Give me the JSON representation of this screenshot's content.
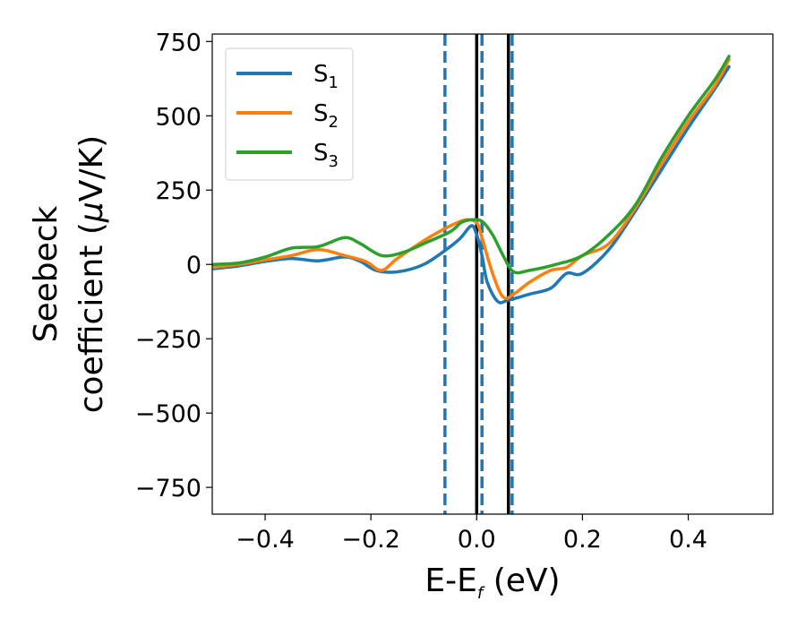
{
  "chart_data": {
    "type": "line",
    "xlabel": {
      "main": "E-E",
      "sub": "f",
      "unit": " (eV)"
    },
    "ylabel": {
      "line1": "Seebeck",
      "line2": "coefficient  (",
      "mu": "μ",
      "line2_end": "V/K)"
    },
    "xlim": [
      -0.5,
      0.56
    ],
    "ylim": [
      -840,
      775
    ],
    "xticks": [
      -0.4,
      -0.2,
      0.0,
      0.2,
      0.4
    ],
    "xtick_labels": [
      "−0.4",
      "−0.2",
      "0.0",
      "0.2",
      "0.4"
    ],
    "yticks": [
      750,
      500,
      250,
      0,
      -250,
      -500,
      -750
    ],
    "ytick_labels": [
      "750",
      "500",
      "250",
      "0",
      "−250",
      "−500",
      "−750"
    ],
    "grid": false,
    "legend_position": "top-left",
    "vlines": [
      {
        "x": -0.06,
        "style": "dashed",
        "color": "#1f77b4"
      },
      {
        "x": 0.01,
        "style": "dashed",
        "color": "#1f77b4"
      },
      {
        "x": 0.067,
        "style": "dashed",
        "color": "#1f77b4"
      },
      {
        "x": 0.0,
        "style": "solid",
        "color": "#000000"
      },
      {
        "x": 0.06,
        "style": "solid",
        "color": "#000000"
      }
    ],
    "series": [
      {
        "name": "S",
        "sub": "1",
        "color": "#1f77b4",
        "points": [
          [
            -0.5,
            -15
          ],
          [
            -0.45,
            -5
          ],
          [
            -0.4,
            10
          ],
          [
            -0.35,
            20
          ],
          [
            -0.3,
            12
          ],
          [
            -0.25,
            25
          ],
          [
            -0.22,
            10
          ],
          [
            -0.19,
            -20
          ],
          [
            -0.15,
            -25
          ],
          [
            -0.1,
            0
          ],
          [
            -0.05,
            60
          ],
          [
            -0.03,
            90
          ],
          [
            -0.01,
            130
          ],
          [
            0.0,
            100
          ],
          [
            0.01,
            30
          ],
          [
            0.02,
            -60
          ],
          [
            0.04,
            -125
          ],
          [
            0.06,
            -120
          ],
          [
            0.1,
            -100
          ],
          [
            0.14,
            -80
          ],
          [
            0.17,
            -30
          ],
          [
            0.2,
            -30
          ],
          [
            0.25,
            50
          ],
          [
            0.3,
            180
          ],
          [
            0.35,
            320
          ],
          [
            0.4,
            460
          ],
          [
            0.45,
            590
          ],
          [
            0.477,
            665
          ]
        ]
      },
      {
        "name": "S",
        "sub": "2",
        "color": "#ff7f0e",
        "points": [
          [
            -0.5,
            -10
          ],
          [
            -0.45,
            0
          ],
          [
            -0.4,
            15
          ],
          [
            -0.35,
            30
          ],
          [
            -0.3,
            50
          ],
          [
            -0.25,
            30
          ],
          [
            -0.21,
            10
          ],
          [
            -0.18,
            -20
          ],
          [
            -0.15,
            20
          ],
          [
            -0.1,
            80
          ],
          [
            -0.05,
            130
          ],
          [
            -0.02,
            150
          ],
          [
            0.0,
            140
          ],
          [
            0.01,
            90
          ],
          [
            0.03,
            -30
          ],
          [
            0.05,
            -110
          ],
          [
            0.07,
            -100
          ],
          [
            0.1,
            -60
          ],
          [
            0.14,
            -20
          ],
          [
            0.17,
            -10
          ],
          [
            0.2,
            30
          ],
          [
            0.25,
            70
          ],
          [
            0.3,
            190
          ],
          [
            0.35,
            340
          ],
          [
            0.4,
            480
          ],
          [
            0.45,
            600
          ],
          [
            0.477,
            690
          ]
        ]
      },
      {
        "name": "S",
        "sub": "3",
        "color": "#2ca02c",
        "points": [
          [
            -0.5,
            0
          ],
          [
            -0.45,
            5
          ],
          [
            -0.4,
            25
          ],
          [
            -0.35,
            55
          ],
          [
            -0.3,
            60
          ],
          [
            -0.25,
            90
          ],
          [
            -0.22,
            70
          ],
          [
            -0.18,
            30
          ],
          [
            -0.14,
            40
          ],
          [
            -0.1,
            70
          ],
          [
            -0.05,
            110
          ],
          [
            -0.03,
            140
          ],
          [
            -0.01,
            150
          ],
          [
            0.01,
            145
          ],
          [
            0.03,
            100
          ],
          [
            0.05,
            30
          ],
          [
            0.07,
            -25
          ],
          [
            0.1,
            -20
          ],
          [
            0.15,
            0
          ],
          [
            0.2,
            30
          ],
          [
            0.25,
            100
          ],
          [
            0.3,
            200
          ],
          [
            0.35,
            360
          ],
          [
            0.4,
            500
          ],
          [
            0.45,
            620
          ],
          [
            0.477,
            700
          ]
        ]
      }
    ]
  }
}
